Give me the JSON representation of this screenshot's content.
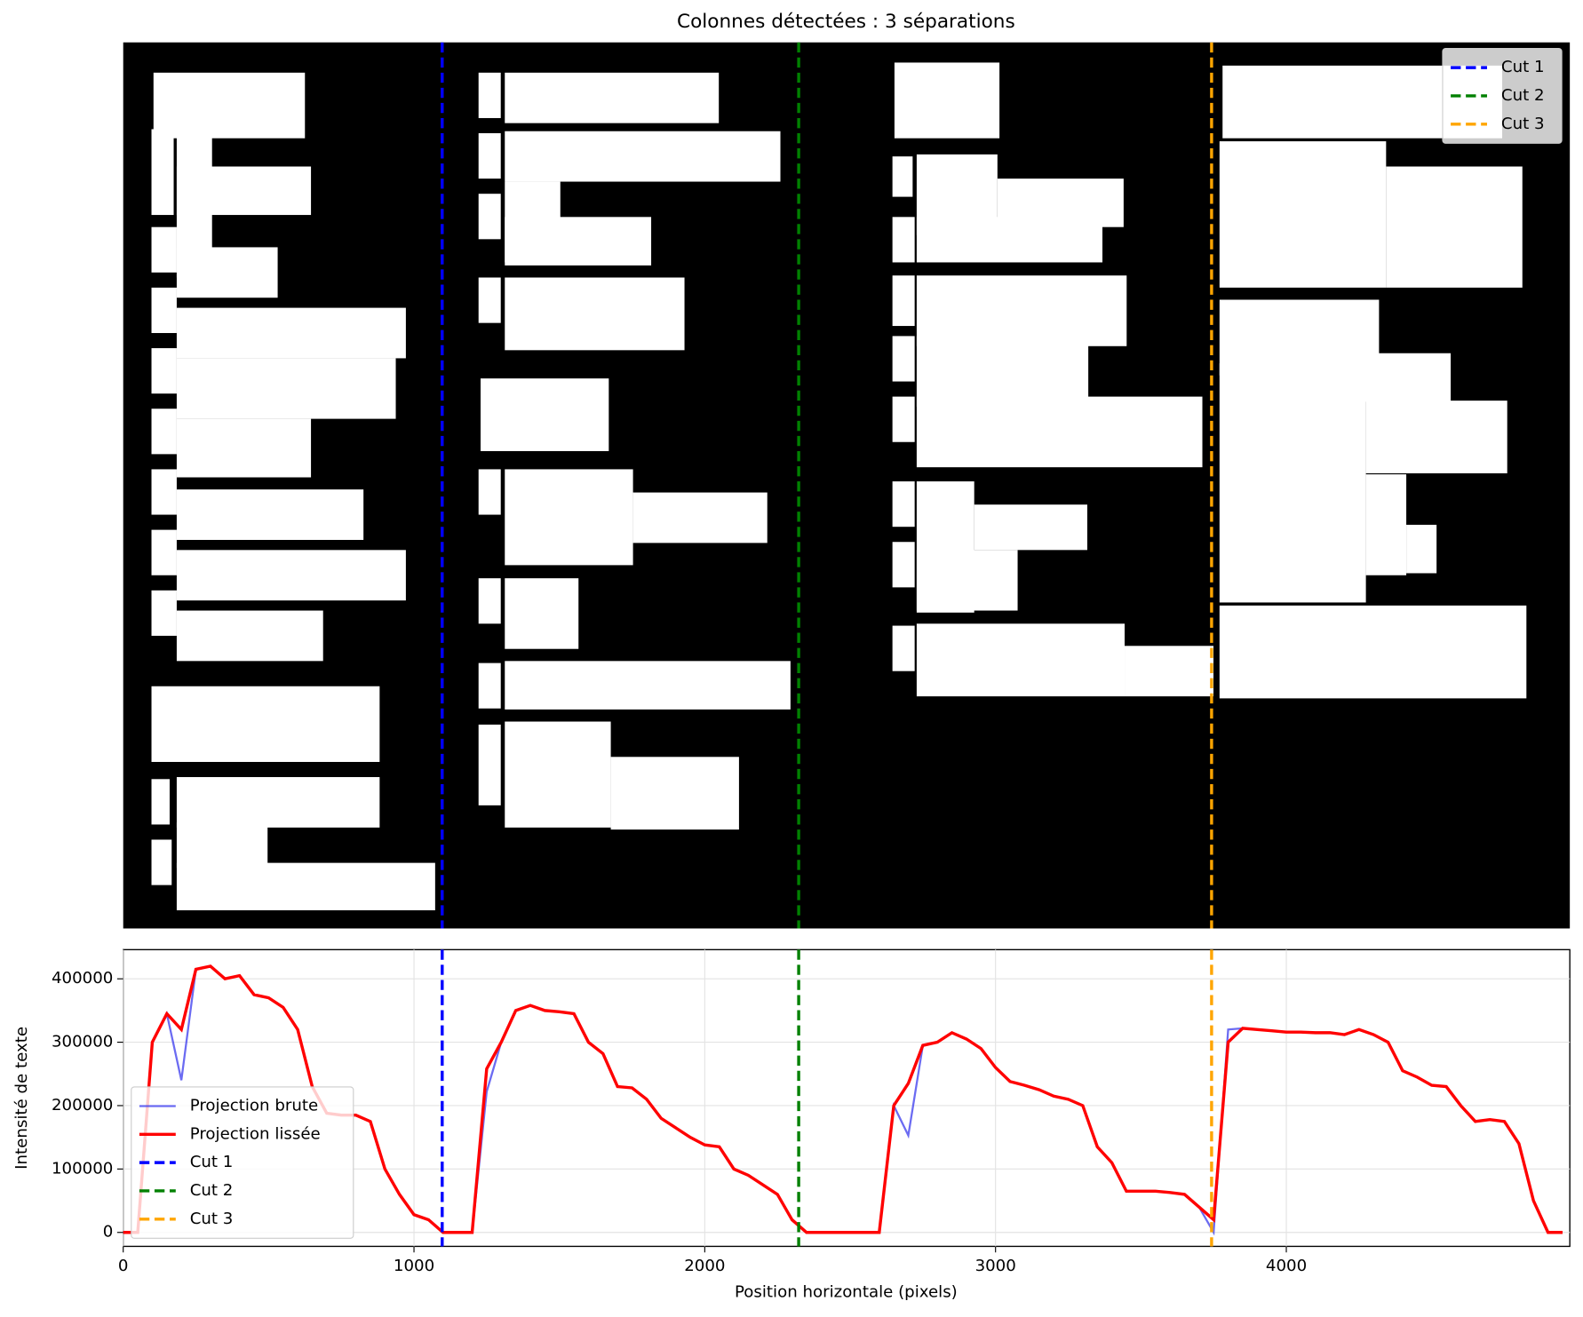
{
  "chart_data": [
    {
      "type": "image",
      "title": "Colonnes détectées : 3 séparations",
      "xlim": [
        0,
        4975
      ],
      "cuts": [
        {
          "name": "Cut 1",
          "color": "blue",
          "x": 1097
        },
        {
          "name": "Cut 2",
          "color": "green",
          "x": 2323
        },
        {
          "name": "Cut 3",
          "color": "orange",
          "x": 3743
        }
      ],
      "legend": "upper right"
    },
    {
      "type": "line",
      "xlabel": "Position horizontale (pixels)",
      "ylabel": "Intensité de texte",
      "x": [
        0,
        50,
        100,
        150,
        200,
        250,
        300,
        350,
        400,
        450,
        500,
        550,
        600,
        650,
        700,
        750,
        800,
        850,
        900,
        950,
        1000,
        1050,
        1100,
        1150,
        1200,
        1250,
        1300,
        1350,
        1400,
        1450,
        1500,
        1550,
        1600,
        1650,
        1700,
        1750,
        1800,
        1850,
        1900,
        1950,
        2000,
        2050,
        2100,
        2150,
        2200,
        2250,
        2300,
        2350,
        2400,
        2450,
        2500,
        2550,
        2600,
        2650,
        2700,
        2750,
        2800,
        2850,
        2900,
        2950,
        3000,
        3050,
        3100,
        3150,
        3200,
        3250,
        3300,
        3350,
        3400,
        3450,
        3500,
        3550,
        3600,
        3650,
        3700,
        3750,
        3800,
        3850,
        3900,
        3950,
        4000,
        4050,
        4100,
        4150,
        4200,
        4250,
        4300,
        4350,
        4400,
        4450,
        4500,
        4550,
        4600,
        4650,
        4700,
        4750,
        4800,
        4850,
        4900,
        4950
      ],
      "series": [
        {
          "name": "Projection brute",
          "color": "#3a3aee",
          "values": [
            0,
            0,
            300000,
            345000,
            240000,
            415000,
            420000,
            400000,
            405000,
            375000,
            370000,
            355000,
            320000,
            230000,
            188000,
            185000,
            185000,
            175000,
            100000,
            60000,
            28000,
            20000,
            0,
            0,
            0,
            222000,
            300000,
            350000,
            358000,
            350000,
            348000,
            345000,
            300000,
            282000,
            230000,
            228000,
            210000,
            180000,
            165000,
            150000,
            138000,
            135000,
            100000,
            90000,
            75000,
            60000,
            20000,
            0,
            0,
            0,
            0,
            0,
            0,
            200000,
            153000,
            295000,
            300000,
            315000,
            305000,
            290000,
            260000,
            238000,
            232000,
            225000,
            215000,
            210000,
            200000,
            135000,
            110000,
            65000,
            65000,
            65000,
            63000,
            60000,
            40000,
            0,
            320000,
            322000,
            320000,
            318000,
            316000,
            316000,
            315000,
            315000,
            312000,
            320000,
            312000,
            300000,
            255000,
            245000,
            232000,
            230000,
            200000,
            175000,
            178000,
            175000,
            140000,
            50000,
            0,
            0
          ]
        },
        {
          "name": "Projection lissée",
          "color": "red",
          "values": [
            0,
            0,
            300000,
            345000,
            320000,
            415000,
            420000,
            400000,
            405000,
            375000,
            370000,
            355000,
            320000,
            230000,
            188000,
            185000,
            185000,
            175000,
            100000,
            60000,
            28000,
            20000,
            0,
            0,
            0,
            258000,
            300000,
            350000,
            358000,
            350000,
            348000,
            345000,
            300000,
            282000,
            230000,
            228000,
            210000,
            180000,
            165000,
            150000,
            138000,
            135000,
            100000,
            90000,
            75000,
            60000,
            20000,
            0,
            0,
            0,
            0,
            0,
            0,
            200000,
            235000,
            295000,
            300000,
            315000,
            305000,
            290000,
            260000,
            238000,
            232000,
            225000,
            215000,
            210000,
            200000,
            135000,
            110000,
            65000,
            65000,
            65000,
            63000,
            60000,
            40000,
            20000,
            300000,
            322000,
            320000,
            318000,
            316000,
            316000,
            315000,
            315000,
            312000,
            320000,
            312000,
            300000,
            255000,
            245000,
            232000,
            230000,
            200000,
            175000,
            178000,
            175000,
            140000,
            50000,
            0,
            0
          ]
        }
      ],
      "cuts": [
        {
          "name": "Cut 1",
          "color": "blue",
          "x": 1097
        },
        {
          "name": "Cut 2",
          "color": "green",
          "x": 2323
        },
        {
          "name": "Cut 3",
          "color": "orange",
          "x": 3743
        }
      ],
      "xlim": [
        0,
        4975
      ],
      "ylim": [
        -22000,
        446000
      ],
      "xticks": [
        0,
        1000,
        2000,
        3000,
        4000
      ],
      "yticks": [
        0,
        100000,
        200000,
        300000,
        400000
      ],
      "grid": true,
      "legend": "lower left"
    }
  ]
}
